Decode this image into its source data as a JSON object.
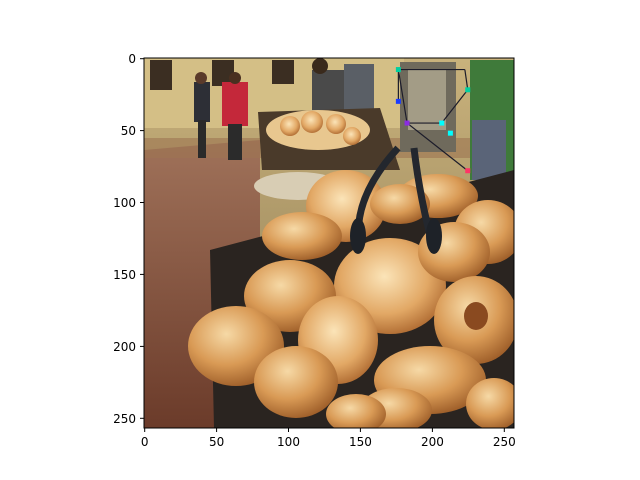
{
  "figure": {
    "image_subject": "bagels piled in bins at an outdoor market, shoppers in background",
    "image_size": [
      256,
      256
    ],
    "x_axis": {
      "ticks": [
        0,
        50,
        100,
        150,
        200,
        250
      ],
      "labels": [
        "0",
        "50",
        "100",
        "150",
        "200",
        "250"
      ],
      "range": [
        0,
        256
      ]
    },
    "y_axis": {
      "ticks": [
        0,
        50,
        100,
        150,
        200,
        250
      ],
      "labels": [
        "0",
        "50",
        "100",
        "150",
        "200",
        "250"
      ],
      "range": [
        0,
        256
      ]
    },
    "keypoint_overlay": {
      "colors": [
        "#00d0a0",
        "#1a3cff",
        "#ff3366",
        "#8a2be2",
        "#00ffff"
      ],
      "edges": [
        [
          [
            176,
            8
          ],
          [
            222,
            8
          ]
        ],
        [
          [
            176,
            8
          ],
          [
            182,
            45
          ]
        ],
        [
          [
            222,
            8
          ],
          [
            224,
            22
          ]
        ],
        [
          [
            182,
            45
          ],
          [
            206,
            45
          ]
        ],
        [
          [
            206,
            45
          ],
          [
            224,
            22
          ]
        ],
        [
          [
            182,
            45
          ],
          [
            224,
            78
          ]
        ],
        [
          [
            176,
            8
          ],
          [
            176,
            30
          ]
        ]
      ],
      "points": [
        {
          "x": 176,
          "y": 8,
          "color": "#00d0a0"
        },
        {
          "x": 176,
          "y": 30,
          "color": "#1a3cff"
        },
        {
          "x": 224,
          "y": 22,
          "color": "#00d0a0"
        },
        {
          "x": 182,
          "y": 45,
          "color": "#8a2be2"
        },
        {
          "x": 206,
          "y": 45,
          "color": "#00ffff"
        },
        {
          "x": 212,
          "y": 52,
          "color": "#00ffff"
        },
        {
          "x": 224,
          "y": 78,
          "color": "#ff3366"
        }
      ]
    }
  }
}
